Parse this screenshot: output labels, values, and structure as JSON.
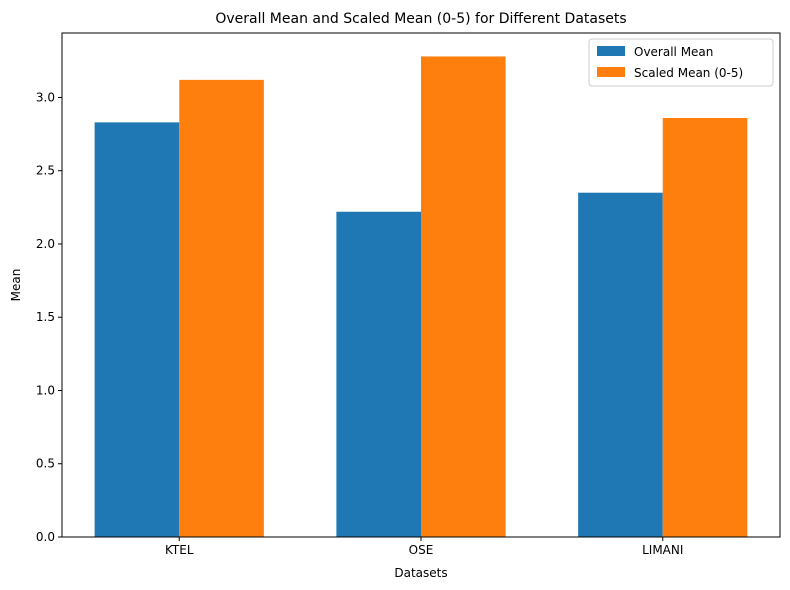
{
  "chart_data": {
    "type": "bar",
    "title": "Overall Mean and Scaled Mean (0-5) for Different Datasets",
    "xlabel": "Datasets",
    "ylabel": "Mean",
    "categories": [
      "KTEL",
      "OSE",
      "LIMANI"
    ],
    "series": [
      {
        "name": "Overall Mean",
        "color": "#1f77b4",
        "values": [
          2.83,
          2.22,
          2.35
        ]
      },
      {
        "name": "Scaled Mean (0-5)",
        "color": "#ff7f0e",
        "values": [
          3.12,
          3.28,
          2.86
        ]
      }
    ],
    "ylim": [
      0,
      3.44
    ],
    "yticks": [
      0.0,
      0.5,
      1.0,
      1.5,
      2.0,
      2.5,
      3.0
    ],
    "ytick_labels": [
      "0.0",
      "0.5",
      "1.0",
      "1.5",
      "2.0",
      "2.5",
      "3.0"
    ],
    "grid": false,
    "legend_position": "top-right"
  }
}
